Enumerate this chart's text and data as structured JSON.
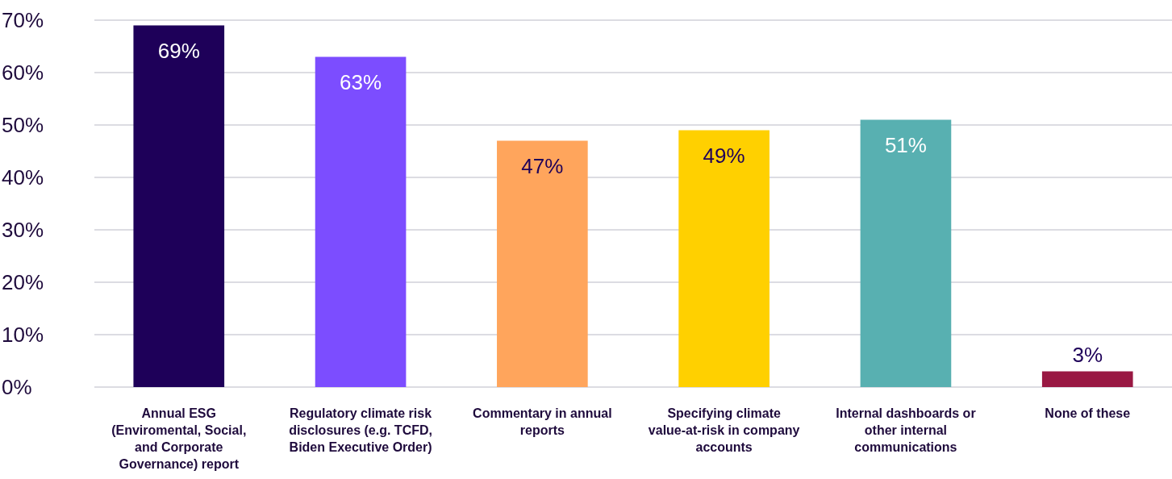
{
  "chart_data": {
    "type": "bar",
    "categories": [
      "Annual ESG (Enviromental, Social, and Corporate Governance) report",
      "Regulatory climate risk disclosures (e.g. TCFD, Biden Executive Order)",
      "Commentary in annual reports",
      "Specifying climate value-at-risk in company accounts",
      "Internal dashboards or other internal communications",
      "None of these"
    ],
    "values": [
      69,
      63,
      47,
      49,
      51,
      3
    ],
    "colors": [
      "#1e0059",
      "#7c4dff",
      "#ffa55c",
      "#ffd000",
      "#58b0b1",
      "#991843"
    ],
    "ylim": [
      0,
      70
    ],
    "yticks": [
      {
        "value": 0,
        "label": "0%"
      },
      {
        "value": 10,
        "label": "10%"
      },
      {
        "value": 20,
        "label": "20%"
      },
      {
        "value": 30,
        "label": "30%"
      },
      {
        "value": 40,
        "label": "40%"
      },
      {
        "value": 50,
        "label": "50%"
      },
      {
        "value": 60,
        "label": "60%"
      },
      {
        "value": 70,
        "label": "70%"
      }
    ],
    "value_labels": [
      "69%",
      "63%",
      "47%",
      "49%",
      "51%",
      "3%"
    ],
    "grid": true
  }
}
